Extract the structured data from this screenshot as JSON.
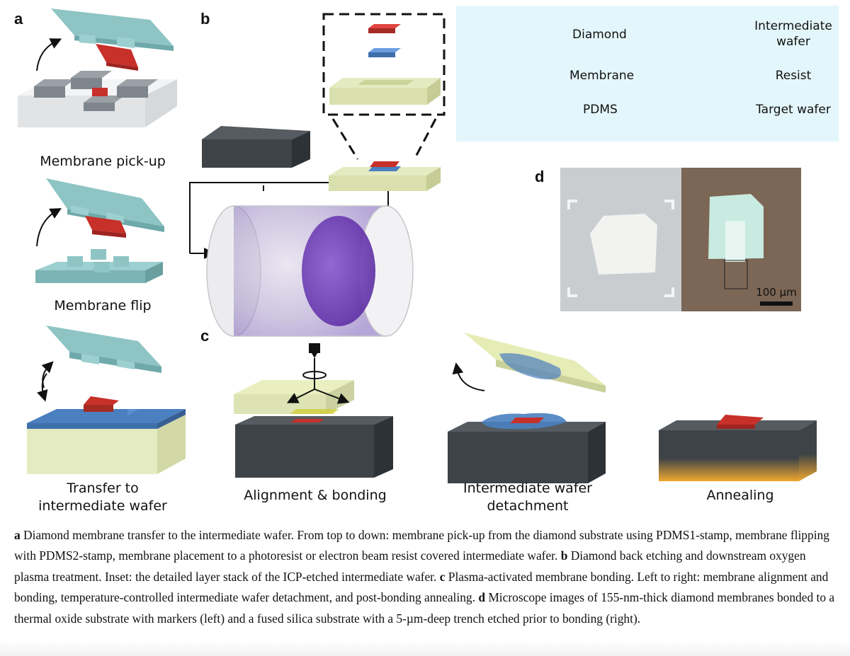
{
  "panels": {
    "a": "a",
    "b": "b",
    "c": "c",
    "d": "d"
  },
  "steps_a": {
    "pickup": "Membrane pick-up",
    "flip": "Membrane flip",
    "transfer_line1": "Transfer to",
    "transfer_line2": "intermediate wafer"
  },
  "legend": {
    "diamond": "Diamond",
    "intermediate_line1": "Intermediate",
    "intermediate_line2": "wafer",
    "membrane": "Membrane",
    "resist": "Resist",
    "pdms": "PDMS",
    "target": "Target wafer"
  },
  "micrograph": {
    "scale": "100 µm"
  },
  "steps_c": {
    "align": "Alignment & bonding",
    "detach_line1": "Intermediate wafer",
    "detach_line2": "detachment",
    "anneal": "Annealing"
  },
  "colors": {
    "diamond": "#c9d3d8",
    "intermediate": "#e3ebb8",
    "membrane": "#c8302a",
    "resist": "#4a7fc0",
    "pdms": "#8ec4c4",
    "target": "#3d4347",
    "legend_bg": "#e3f6fb",
    "plasma": "#6a3aa8",
    "anneal_glow": "#f0a830"
  },
  "caption": {
    "a_label": "a",
    "a_text": " Diamond membrane transfer to the intermediate wafer. From top to down: membrane pick-up from the diamond substrate using PDMS1-stamp, membrane flipping with PDMS2-stamp, membrane placement to a photoresist or electron beam resist covered intermediate wafer. ",
    "b_label": "b",
    "b_text": " Diamond back etching and downstream oxygen plasma treatment. Inset: the detailed layer stack of the ICP-etched intermediate wafer. ",
    "c_label": "c",
    "c_text": " Plasma-activated membrane bonding. Left to right: membrane alignment and bonding, temperature-controlled intermediate wafer detachment, and post-bonding annealing. ",
    "d_label": "d",
    "d_text": " Microscope images of 155-nm-thick diamond membranes bonded to a thermal oxide substrate with markers (left) and a fused silica substrate with a 5-µm-deep trench etched prior to bonding (right)."
  }
}
